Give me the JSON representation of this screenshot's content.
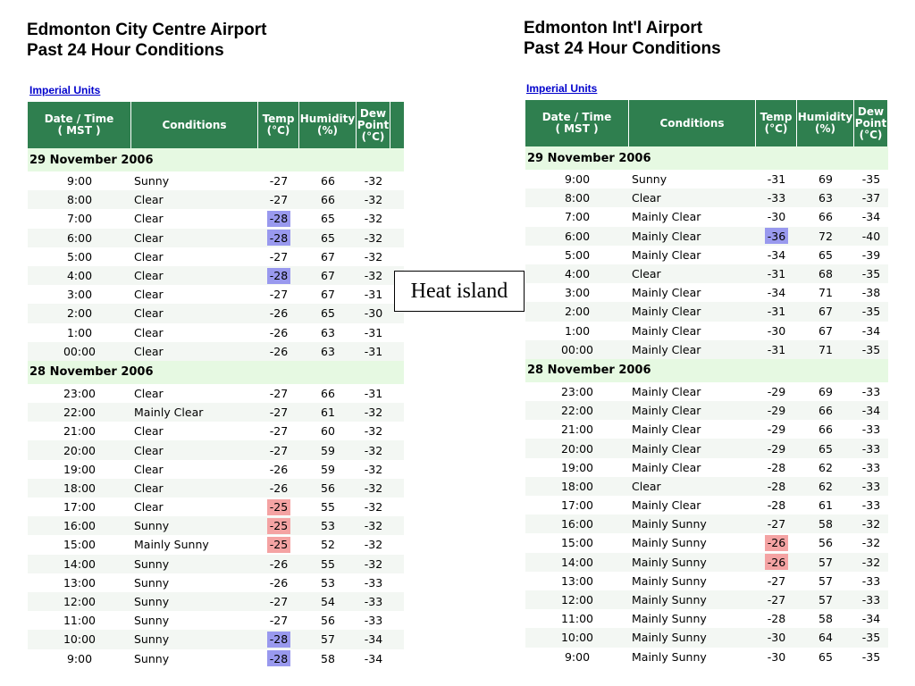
{
  "callout": "Heat island",
  "colors": {
    "header_green": "#2f7f4f",
    "date_band": "#e6f9e2",
    "cold_highlight": "#9999ee",
    "warm_highlight": "#f4a3a3",
    "link": "#0000cc"
  },
  "headers": {
    "date": "Date / Time\n( MST )",
    "conditions": "Conditions",
    "temp": "Temp\n(°C)",
    "humidity": "Humidity\n(%)",
    "dew": "Dew\nPoint\n(°C)"
  },
  "left": {
    "title1": "Edmonton City Centre Airport",
    "title2": "Past 24 Hour Conditions",
    "units_link": "Imperial Units",
    "groups": [
      {
        "date": "29 November 2006",
        "rows": [
          {
            "time": "9:00",
            "cond": "Sunny",
            "temp": "-27",
            "hum": "66",
            "dew": "-32",
            "hl": ""
          },
          {
            "time": "8:00",
            "cond": "Clear",
            "temp": "-27",
            "hum": "66",
            "dew": "-32",
            "hl": ""
          },
          {
            "time": "7:00",
            "cond": "Clear",
            "temp": "-28",
            "hum": "65",
            "dew": "-32",
            "hl": "blue"
          },
          {
            "time": "6:00",
            "cond": "Clear",
            "temp": "-28",
            "hum": "65",
            "dew": "-32",
            "hl": "blue"
          },
          {
            "time": "5:00",
            "cond": "Clear",
            "temp": "-27",
            "hum": "67",
            "dew": "-32",
            "hl": ""
          },
          {
            "time": "4:00",
            "cond": "Clear",
            "temp": "-28",
            "hum": "67",
            "dew": "-32",
            "hl": "blue"
          },
          {
            "time": "3:00",
            "cond": "Clear",
            "temp": "-27",
            "hum": "67",
            "dew": "-31",
            "hl": ""
          },
          {
            "time": "2:00",
            "cond": "Clear",
            "temp": "-26",
            "hum": "65",
            "dew": "-30",
            "hl": ""
          },
          {
            "time": "1:00",
            "cond": "Clear",
            "temp": "-26",
            "hum": "63",
            "dew": "-31",
            "hl": ""
          },
          {
            "time": "00:00",
            "cond": "Clear",
            "temp": "-26",
            "hum": "63",
            "dew": "-31",
            "hl": ""
          }
        ]
      },
      {
        "date": "28 November 2006",
        "rows": [
          {
            "time": "23:00",
            "cond": "Clear",
            "temp": "-27",
            "hum": "66",
            "dew": "-31",
            "hl": ""
          },
          {
            "time": "22:00",
            "cond": "Mainly Clear",
            "temp": "-27",
            "hum": "61",
            "dew": "-32",
            "hl": ""
          },
          {
            "time": "21:00",
            "cond": "Clear",
            "temp": "-27",
            "hum": "60",
            "dew": "-32",
            "hl": ""
          },
          {
            "time": "20:00",
            "cond": "Clear",
            "temp": "-27",
            "hum": "59",
            "dew": "-32",
            "hl": ""
          },
          {
            "time": "19:00",
            "cond": "Clear",
            "temp": "-26",
            "hum": "59",
            "dew": "-32",
            "hl": ""
          },
          {
            "time": "18:00",
            "cond": "Clear",
            "temp": "-26",
            "hum": "56",
            "dew": "-32",
            "hl": ""
          },
          {
            "time": "17:00",
            "cond": "Clear",
            "temp": "-25",
            "hum": "55",
            "dew": "-32",
            "hl": "red"
          },
          {
            "time": "16:00",
            "cond": "Sunny",
            "temp": "-25",
            "hum": "53",
            "dew": "-32",
            "hl": "red"
          },
          {
            "time": "15:00",
            "cond": "Mainly Sunny",
            "temp": "-25",
            "hum": "52",
            "dew": "-32",
            "hl": "red"
          },
          {
            "time": "14:00",
            "cond": "Sunny",
            "temp": "-26",
            "hum": "55",
            "dew": "-32",
            "hl": ""
          },
          {
            "time": "13:00",
            "cond": "Sunny",
            "temp": "-26",
            "hum": "53",
            "dew": "-33",
            "hl": ""
          },
          {
            "time": "12:00",
            "cond": "Sunny",
            "temp": "-27",
            "hum": "54",
            "dew": "-33",
            "hl": ""
          },
          {
            "time": "11:00",
            "cond": "Sunny",
            "temp": "-27",
            "hum": "56",
            "dew": "-33",
            "hl": ""
          },
          {
            "time": "10:00",
            "cond": "Sunny",
            "temp": "-28",
            "hum": "57",
            "dew": "-34",
            "hl": "blue"
          },
          {
            "time": "9:00",
            "cond": "Sunny",
            "temp": "-28",
            "hum": "58",
            "dew": "-34",
            "hl": "blue"
          }
        ]
      }
    ]
  },
  "right": {
    "title1": "Edmonton Int'l Airport",
    "title2": "Past 24 Hour Conditions",
    "units_link": "Imperial Units",
    "groups": [
      {
        "date": "29 November 2006",
        "rows": [
          {
            "time": "9:00",
            "cond": "Sunny",
            "temp": "-31",
            "hum": "69",
            "dew": "-35",
            "hl": ""
          },
          {
            "time": "8:00",
            "cond": "Clear",
            "temp": "-33",
            "hum": "63",
            "dew": "-37",
            "hl": ""
          },
          {
            "time": "7:00",
            "cond": "Mainly Clear",
            "temp": "-30",
            "hum": "66",
            "dew": "-34",
            "hl": ""
          },
          {
            "time": "6:00",
            "cond": "Mainly Clear",
            "temp": "-36",
            "hum": "72",
            "dew": "-40",
            "hl": "blue"
          },
          {
            "time": "5:00",
            "cond": "Mainly Clear",
            "temp": "-34",
            "hum": "65",
            "dew": "-39",
            "hl": ""
          },
          {
            "time": "4:00",
            "cond": "Clear",
            "temp": "-31",
            "hum": "68",
            "dew": "-35",
            "hl": ""
          },
          {
            "time": "3:00",
            "cond": "Mainly Clear",
            "temp": "-34",
            "hum": "71",
            "dew": "-38",
            "hl": ""
          },
          {
            "time": "2:00",
            "cond": "Mainly Clear",
            "temp": "-31",
            "hum": "67",
            "dew": "-35",
            "hl": ""
          },
          {
            "time": "1:00",
            "cond": "Mainly Clear",
            "temp": "-30",
            "hum": "67",
            "dew": "-34",
            "hl": ""
          },
          {
            "time": "00:00",
            "cond": "Mainly Clear",
            "temp": "-31",
            "hum": "71",
            "dew": "-35",
            "hl": ""
          }
        ]
      },
      {
        "date": "28 November 2006",
        "rows": [
          {
            "time": "23:00",
            "cond": "Mainly Clear",
            "temp": "-29",
            "hum": "69",
            "dew": "-33",
            "hl": ""
          },
          {
            "time": "22:00",
            "cond": "Mainly Clear",
            "temp": "-29",
            "hum": "66",
            "dew": "-34",
            "hl": ""
          },
          {
            "time": "21:00",
            "cond": "Mainly Clear",
            "temp": "-29",
            "hum": "66",
            "dew": "-33",
            "hl": ""
          },
          {
            "time": "20:00",
            "cond": "Mainly Clear",
            "temp": "-29",
            "hum": "65",
            "dew": "-33",
            "hl": ""
          },
          {
            "time": "19:00",
            "cond": "Mainly Clear",
            "temp": "-28",
            "hum": "62",
            "dew": "-33",
            "hl": ""
          },
          {
            "time": "18:00",
            "cond": "Clear",
            "temp": "-28",
            "hum": "62",
            "dew": "-33",
            "hl": ""
          },
          {
            "time": "17:00",
            "cond": "Mainly Clear",
            "temp": "-28",
            "hum": "61",
            "dew": "-33",
            "hl": ""
          },
          {
            "time": "16:00",
            "cond": "Mainly Sunny",
            "temp": "-27",
            "hum": "58",
            "dew": "-32",
            "hl": ""
          },
          {
            "time": "15:00",
            "cond": "Mainly Sunny",
            "temp": "-26",
            "hum": "56",
            "dew": "-32",
            "hl": "red"
          },
          {
            "time": "14:00",
            "cond": "Mainly Sunny",
            "temp": "-26",
            "hum": "57",
            "dew": "-32",
            "hl": "red"
          },
          {
            "time": "13:00",
            "cond": "Mainly Sunny",
            "temp": "-27",
            "hum": "57",
            "dew": "-33",
            "hl": ""
          },
          {
            "time": "12:00",
            "cond": "Mainly Sunny",
            "temp": "-27",
            "hum": "57",
            "dew": "-33",
            "hl": ""
          },
          {
            "time": "11:00",
            "cond": "Mainly Sunny",
            "temp": "-28",
            "hum": "58",
            "dew": "-34",
            "hl": ""
          },
          {
            "time": "10:00",
            "cond": "Mainly Sunny",
            "temp": "-30",
            "hum": "64",
            "dew": "-35",
            "hl": ""
          },
          {
            "time": "9:00",
            "cond": "Mainly Sunny",
            "temp": "-30",
            "hum": "65",
            "dew": "-35",
            "hl": ""
          }
        ]
      }
    ]
  }
}
